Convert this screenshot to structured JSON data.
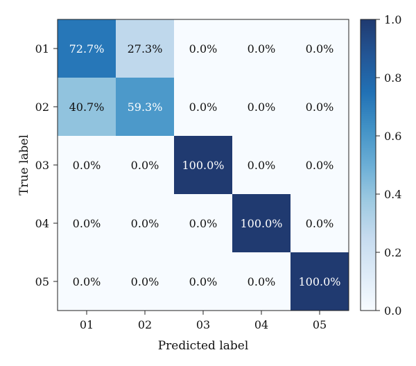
{
  "chart_data": {
    "type": "heatmap",
    "title": "",
    "xlabel": "Predicted label",
    "ylabel": "True label",
    "x_categories": [
      "01",
      "02",
      "03",
      "04",
      "05"
    ],
    "y_categories": [
      "01",
      "02",
      "03",
      "04",
      "05"
    ],
    "values": [
      [
        0.727,
        0.273,
        0.0,
        0.0,
        0.0
      ],
      [
        0.407,
        0.593,
        0.0,
        0.0,
        0.0
      ],
      [
        0.0,
        0.0,
        1.0,
        0.0,
        0.0
      ],
      [
        0.0,
        0.0,
        0.0,
        1.0,
        0.0
      ],
      [
        0.0,
        0.0,
        0.0,
        0.0,
        1.0
      ]
    ],
    "cell_labels": [
      [
        "72.7%",
        "27.3%",
        "0.0%",
        "0.0%",
        "0.0%"
      ],
      [
        "40.7%",
        "59.3%",
        "0.0%",
        "0.0%",
        "0.0%"
      ],
      [
        "0.0%",
        "0.0%",
        "100.0%",
        "0.0%",
        "0.0%"
      ],
      [
        "0.0%",
        "0.0%",
        "0.0%",
        "100.0%",
        "0.0%"
      ],
      [
        "0.0%",
        "0.0%",
        "0.0%",
        "0.0%",
        "100.0%"
      ]
    ],
    "colorbar": {
      "range": [
        0.0,
        1.0
      ],
      "ticks": [
        0.0,
        0.2,
        0.4,
        0.6,
        0.8,
        1.0
      ],
      "tick_labels": [
        "0.0",
        "0.2",
        "0.4",
        "0.6",
        "0.8",
        "1.0"
      ],
      "colormap": "Blues",
      "color_low": "#f7fbff",
      "color_high": "#203a70"
    },
    "grid": false,
    "legend": "colorbar-right"
  }
}
